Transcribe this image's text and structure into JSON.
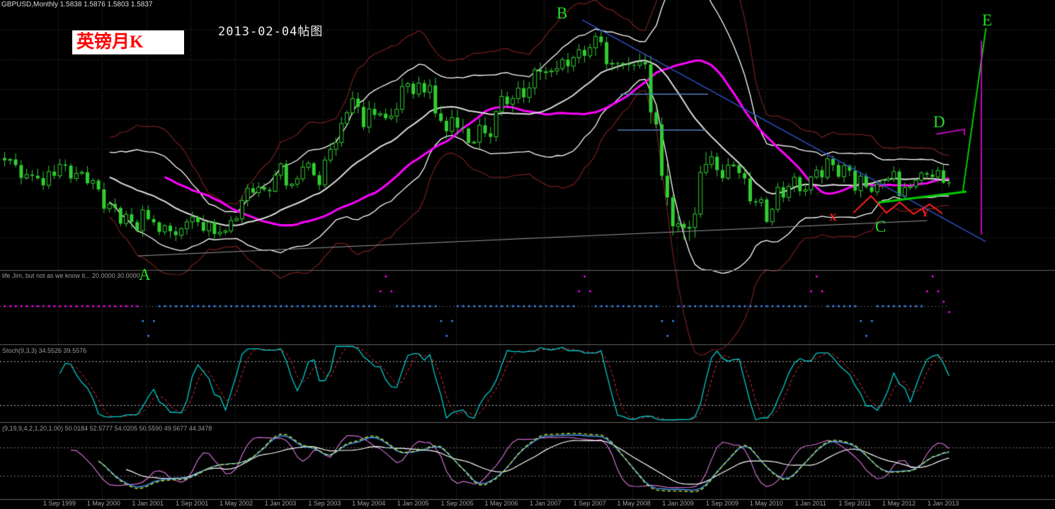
{
  "window": {
    "symbol_line": "GBPUSD,Monthly  1.5838 1.5876 1.5803 1.5837"
  },
  "annotations": {
    "sticker": "英镑月K",
    "title": "2013-02-04帖图",
    "points": {
      "A": "A",
      "B": "B",
      "C": "C",
      "D": "D",
      "E": "E",
      "X": "X",
      "Y": "Y"
    }
  },
  "panes": {
    "pane2_label": "life Jim, but not as we know it...  20.0000 30.0000",
    "pane3_label": "Stoch(9,3,3)  34.5526 39.5576",
    "pane4_label": "(9,19,9,4,2,1,20,1.00)  50.0184 52.5777 54.0205 50.5590 49.5677 44.3478"
  },
  "colors": {
    "background": "#000000",
    "grid": "#3c3c3c",
    "candle": "#32cd32",
    "bollinger": "#ffffff",
    "sma": "#dddddd",
    "envelope": "#7a1f1f",
    "slow_ma": "#ff00ff",
    "trendline_blue": "#3050c8",
    "support_gray": "#999999",
    "fib_blue": "#4f81bd",
    "green_line": "#00cc00",
    "zigzag_red": "#ff2020",
    "dots_up": "#ff00ff",
    "dots_down": "#3a8fff",
    "stoch_main": "#00cccc",
    "stoch_signal": "#dd3333",
    "p4_green": "#b8e038",
    "p4_blue": "#4aa3ff",
    "p4_white": "#ffffff",
    "p4_violet": "#d070d0"
  },
  "chart_data": [
    {
      "type": "candlestick",
      "title": "GBPUSD Monthly",
      "x_months_start": "1998-11",
      "x_months_end": "2013-02",
      "ylim": [
        1.3,
        2.2
      ],
      "closes": [
        1.66,
        1.663,
        1.644,
        1.601,
        1.612,
        1.608,
        1.6,
        1.576,
        1.622,
        1.608,
        1.646,
        1.642,
        1.599,
        1.616,
        1.62,
        1.583,
        1.592,
        1.562,
        1.497,
        1.513,
        1.5,
        1.447,
        1.478,
        1.452,
        1.423,
        1.493,
        1.462,
        1.451,
        1.419,
        1.44,
        1.421,
        1.408,
        1.43,
        1.453,
        1.469,
        1.452,
        1.423,
        1.452,
        1.412,
        1.418,
        1.422,
        1.457,
        1.463,
        1.525,
        1.566,
        1.551,
        1.57,
        1.561,
        1.556,
        1.61,
        1.648,
        1.575,
        1.58,
        1.598,
        1.637,
        1.65,
        1.61,
        1.577,
        1.661,
        1.697,
        1.72,
        1.784,
        1.82,
        1.868,
        1.84,
        1.772,
        1.833,
        1.813,
        1.817,
        1.802,
        1.809,
        1.832,
        1.909,
        1.918,
        1.883,
        1.92,
        1.889,
        1.912,
        1.818,
        1.793,
        1.758,
        1.804,
        1.77,
        1.767,
        1.719,
        1.721,
        1.778,
        1.751,
        1.739,
        1.824,
        1.875,
        1.849,
        1.868,
        1.903,
        1.872,
        1.904,
        1.965,
        1.958,
        1.958,
        1.961,
        1.969,
        1.999,
        1.977,
        2.006,
        2.032,
        2.012,
        2.039,
        2.077,
        2.058,
        1.984,
        1.987,
        1.986,
        1.986,
        1.981,
        1.98,
        1.991,
        1.983,
        1.822,
        1.781,
        1.608,
        1.535,
        1.438,
        1.446,
        1.432,
        1.434,
        1.479,
        1.619,
        1.646,
        1.672,
        1.627,
        1.6,
        1.644,
        1.644,
        1.617,
        1.599,
        1.522,
        1.518,
        1.528,
        1.453,
        1.495,
        1.569,
        1.535,
        1.572,
        1.603,
        1.556,
        1.561,
        1.604,
        1.627,
        1.603,
        1.665,
        1.644,
        1.605,
        1.642,
        1.625,
        1.558,
        1.607,
        1.57,
        1.554,
        1.579,
        1.593,
        1.599,
        1.622,
        1.54,
        1.568,
        1.572,
        1.593,
        1.617,
        1.612,
        1.604,
        1.626,
        1.585,
        1.584
      ],
      "x_ticks": [
        {
          "bar": 10,
          "label": "1 Sep 1999"
        },
        {
          "bar": 18,
          "label": "1 May 2000"
        },
        {
          "bar": 26,
          "label": "1 Jan 2001"
        },
        {
          "bar": 34,
          "label": "1 Sep 2001"
        },
        {
          "bar": 42,
          "label": "1 May 2002"
        },
        {
          "bar": 50,
          "label": "1 Jan 2003"
        },
        {
          "bar": 58,
          "label": "1 Sep 2003"
        },
        {
          "bar": 66,
          "label": "1 May 2004"
        },
        {
          "bar": 74,
          "label": "1 Jan 2005"
        },
        {
          "bar": 82,
          "label": "1 Sep 2005"
        },
        {
          "bar": 90,
          "label": "1 May 2006"
        },
        {
          "bar": 98,
          "label": "1 Jan 2007"
        },
        {
          "bar": 106,
          "label": "1 Sep 2007"
        },
        {
          "bar": 114,
          "label": "1 May 2008"
        },
        {
          "bar": 122,
          "label": "1 Jan 2009"
        },
        {
          "bar": 130,
          "label": "1 Sep 2009"
        },
        {
          "bar": 138,
          "label": "1 May 2010"
        },
        {
          "bar": 146,
          "label": "1 Jan 2011"
        },
        {
          "bar": 154,
          "label": "1 Sep 2011"
        },
        {
          "bar": 162,
          "label": "1 May 2012"
        },
        {
          "bar": 170,
          "label": "1 Jan 2013"
        }
      ],
      "overlays": [
        "SMA20 white",
        "Bollinger +/-2sd white",
        "Envelope +/-3.2sd dark red",
        "Displaced SMA20(+10) magenta"
      ],
      "drawings": [
        {
          "name": "down-trendline",
          "type": "polyline",
          "color": "#3050c8",
          "width": 1.5,
          "points": [
            [
              104.9,
              2.133
            ],
            [
              178,
              1.386
            ]
          ]
        },
        {
          "name": "long-gray-line",
          "type": "polyline",
          "color": "#999999",
          "width": 1,
          "points": [
            [
              24.5,
              1.338
            ],
            [
              167.4,
              1.457
            ]
          ]
        },
        {
          "name": "fib-level-upper",
          "type": "polyline",
          "color": "#4f81bd",
          "width": 1.5,
          "points": [
            [
              111.8,
              1.883
            ],
            [
              127.7,
              1.883
            ]
          ]
        },
        {
          "name": "fib-level-lower",
          "type": "polyline",
          "color": "#4f81bd",
          "width": 1.5,
          "points": [
            [
              111.3,
              1.762
            ],
            [
              127.2,
              1.762
            ]
          ]
        },
        {
          "name": "green-support",
          "type": "polyline",
          "color": "#00cc00",
          "width": 3,
          "points": [
            [
              158.5,
              1.518
            ],
            [
              174.5,
              1.555
            ]
          ]
        },
        {
          "name": "green-projection-up",
          "type": "polyline",
          "color": "#00cc00",
          "width": 2,
          "points": [
            [
              173.8,
              1.552
            ],
            [
              178,
              2.105
            ]
          ]
        },
        {
          "name": "magenta-vertical",
          "type": "polyline",
          "color": "#ff00ff",
          "width": 1.5,
          "points": [
            [
              177.2,
              1.41
            ],
            [
              177.2,
              2.062
            ]
          ]
        },
        {
          "name": "d-bracket",
          "type": "polyline",
          "color": "#ff00ff",
          "width": 1.5,
          "points": [
            [
              169,
              1.748
            ],
            [
              174.1,
              1.764
            ],
            [
              174.1,
              1.745
            ]
          ]
        },
        {
          "name": "red-zigzag",
          "type": "polyline",
          "color": "#ff2020",
          "width": 2,
          "points": [
            [
              154,
              1.483
            ],
            [
              157.2,
              1.54
            ],
            [
              160,
              1.483
            ],
            [
              162.4,
              1.519
            ],
            [
              164.9,
              1.479
            ],
            [
              167.8,
              1.512
            ],
            [
              170.1,
              1.481
            ]
          ]
        }
      ]
    },
    {
      "type": "scatter",
      "name": "life Jim, but not as we know it (dotted trend-state)",
      "baseline": 0,
      "first_magenta_until_bar": 24,
      "spikes": [
        {
          "bar": 26,
          "dir": -1
        },
        {
          "bar": 69,
          "dir": 1
        },
        {
          "bar": 80,
          "dir": -1
        },
        {
          "bar": 105,
          "dir": 1
        },
        {
          "bar": 120,
          "dir": -1
        },
        {
          "bar": 147,
          "dir": 1
        },
        {
          "bar": 156,
          "dir": -1
        },
        {
          "bar": 168,
          "dir": 1
        }
      ],
      "tail": [
        {
          "bar": 169,
          "v": 0.5
        },
        {
          "bar": 170,
          "v": 0.15
        },
        {
          "bar": 171,
          "v": -0.2
        }
      ]
    },
    {
      "type": "line",
      "name": "Stochastic oscillator",
      "params": "(9,3,3)",
      "last_values": [
        34.5526,
        39.5576
      ],
      "levels": [
        80,
        20
      ],
      "derived_from": "closes of pane 0"
    },
    {
      "type": "line",
      "name": "multi moving-average oscillator",
      "params": "(9,19,9,4,2,1,20,1.00)",
      "last_values": [
        50.0184,
        52.5777,
        54.0205,
        50.559,
        49.5677,
        44.3478
      ],
      "levels": [
        70,
        30
      ],
      "derived_from": "smoothed stochastic of pane 0"
    }
  ]
}
